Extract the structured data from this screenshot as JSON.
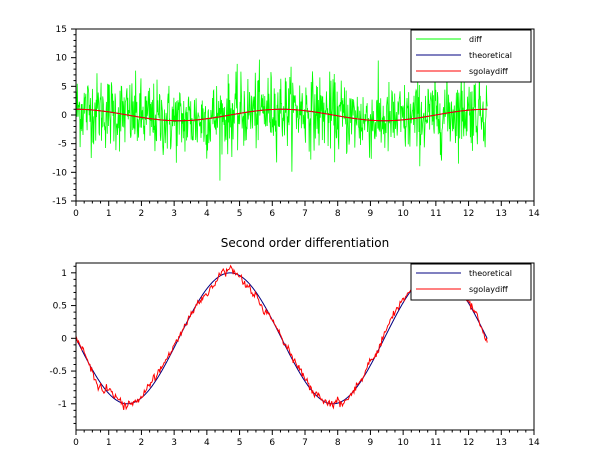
{
  "chart_data": [
    {
      "type": "line",
      "title": "",
      "xlabel": "",
      "ylabel": "",
      "xlim": [
        0,
        14
      ],
      "ylim": [
        -15,
        15
      ],
      "xticks": [
        0,
        1,
        2,
        3,
        4,
        5,
        6,
        7,
        8,
        9,
        10,
        11,
        12,
        13,
        14
      ],
      "yticks": [
        15,
        10,
        5,
        0,
        -5,
        -10,
        -15
      ],
      "grid": false,
      "legend_position": "top-right",
      "series": [
        {
          "name": "diff",
          "color": "#00ff00",
          "kind": "noise",
          "x_range": [
            0,
            12.57
          ],
          "center": "sin(x+pi/2)",
          "amplitude": 6
        },
        {
          "name": "theoretical",
          "color": "#000080",
          "kind": "function",
          "x_range": [
            0,
            12.57
          ],
          "expr": "cos(x)"
        },
        {
          "name": "sgolaydiff",
          "color": "#ff0000",
          "kind": "smoothed",
          "x_range": [
            0,
            12.57
          ],
          "expr": "cos(x)"
        }
      ]
    },
    {
      "type": "line",
      "title": "Second order differentiation",
      "xlabel": "",
      "ylabel": "",
      "xlim": [
        0,
        14
      ],
      "ylim": [
        -1.4,
        1.15
      ],
      "xticks": [
        0,
        1,
        2,
        3,
        4,
        5,
        6,
        7,
        8,
        9,
        10,
        11,
        12,
        13,
        14
      ],
      "yticks": [
        1,
        0.5,
        0,
        -0.5,
        -1
      ],
      "ytick_labels": [
        "1",
        "0.5",
        "0",
        "-0.5",
        "-1"
      ],
      "grid": false,
      "legend_position": "top-right",
      "series": [
        {
          "name": "theoretical",
          "color": "#000080",
          "kind": "function",
          "x_range": [
            0,
            12.57
          ],
          "expr": "-sin(x)"
        },
        {
          "name": "sgolaydiff",
          "color": "#ff0000",
          "kind": "noisy",
          "x_range": [
            0,
            12.57
          ],
          "expr": "-sin(x)"
        }
      ]
    }
  ]
}
